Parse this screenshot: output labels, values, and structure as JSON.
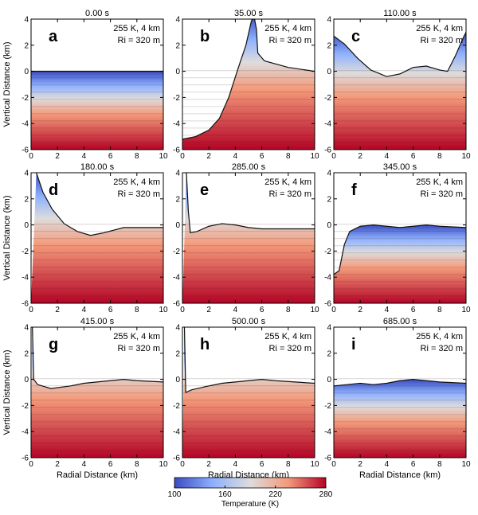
{
  "chart_data": {
    "type": "heatmap",
    "xlabel": "Radial Distance (km)",
    "ylabel": "Vertical Distance (km)",
    "xlim": [
      0,
      10
    ],
    "ylim": [
      -6,
      4
    ],
    "xticks": [
      0,
      2,
      4,
      6,
      8,
      10
    ],
    "yticks": [
      -6,
      -4,
      -2,
      0,
      2,
      4
    ],
    "colorbar": {
      "label": "Temperature (K)",
      "range": [
        100,
        280
      ],
      "ticks": [
        100,
        160,
        220,
        280
      ],
      "colors": [
        "#3a4cc0",
        "#8db0fe",
        "#dddcdc",
        "#f49a7b",
        "#b40426"
      ]
    },
    "panels": [
      {
        "letter": "a",
        "time": "0.00 s",
        "info1": "255 K, 4 km",
        "info2": "Ri = 320 m",
        "surface": [
          [
            0,
            0
          ],
          [
            10,
            0
          ]
        ]
      },
      {
        "letter": "b",
        "time": "35.00 s",
        "info1": "255 K, 4 km",
        "info2": "Ri = 320 m",
        "surface": [
          [
            0,
            -5.2
          ],
          [
            1,
            -5
          ],
          [
            2,
            -4.5
          ],
          [
            2.8,
            -3.6
          ],
          [
            3.5,
            -2
          ],
          [
            4.2,
            0.2
          ],
          [
            4.8,
            2
          ],
          [
            5.2,
            3.8
          ],
          [
            5.4,
            4.3
          ],
          [
            5.6,
            3.2
          ],
          [
            5.7,
            1.4
          ],
          [
            6.2,
            0.8
          ],
          [
            8,
            0.3
          ],
          [
            10,
            0
          ]
        ]
      },
      {
        "letter": "c",
        "time": "110.00 s",
        "info1": "255 K, 4 km",
        "info2": "Ri = 320 m",
        "surface": [
          [
            0,
            2.7
          ],
          [
            0.8,
            2.1
          ],
          [
            1.8,
            1
          ],
          [
            2.8,
            0.1
          ],
          [
            4,
            -0.4
          ],
          [
            5,
            -0.2
          ],
          [
            6,
            0.3
          ],
          [
            7,
            0.4
          ],
          [
            8,
            0.1
          ],
          [
            8.6,
            0
          ],
          [
            9.2,
            1.2
          ],
          [
            9.8,
            2.6
          ],
          [
            10,
            3
          ]
        ]
      },
      {
        "letter": "d",
        "time": "180.00 s",
        "info1": "255 K, 4 km",
        "info2": "Ri = 320 m",
        "surface": [
          [
            0.4,
            4
          ],
          [
            0.9,
            2.5
          ],
          [
            1.6,
            1.2
          ],
          [
            2.5,
            0.1
          ],
          [
            3.5,
            -0.5
          ],
          [
            4.5,
            -0.8
          ],
          [
            5.5,
            -0.6
          ],
          [
            7,
            -0.2
          ],
          [
            10,
            -0.2
          ]
        ]
      },
      {
        "letter": "e",
        "time": "285.00 s",
        "info1": "255 K, 4 km",
        "info2": "Ri = 320 m",
        "surface": [
          [
            0.3,
            4
          ],
          [
            0.45,
            1
          ],
          [
            0.6,
            -0.6
          ],
          [
            1.1,
            -0.5
          ],
          [
            2,
            -0.1
          ],
          [
            3,
            0.1
          ],
          [
            4,
            0
          ],
          [
            5,
            -0.2
          ],
          [
            6,
            -0.3
          ],
          [
            10,
            -0.3
          ]
        ]
      },
      {
        "letter": "f",
        "time": "345.00 s",
        "info1": "255 K, 4 km",
        "info2": "Ri = 320 m",
        "surface": [
          [
            0,
            -3.8
          ],
          [
            0.4,
            -3.5
          ],
          [
            0.8,
            -1.5
          ],
          [
            1.2,
            -0.5
          ],
          [
            2,
            -0.1
          ],
          [
            3,
            0
          ],
          [
            4,
            -0.1
          ],
          [
            5,
            -0.2
          ],
          [
            6,
            -0.1
          ],
          [
            7,
            0
          ],
          [
            8,
            -0.1
          ],
          [
            10,
            -0.2
          ]
        ]
      },
      {
        "letter": "g",
        "time": "415.00 s",
        "info1": "255 K, 4 km",
        "info2": "Ri = 320 m",
        "surface": [
          [
            0.1,
            4
          ],
          [
            0.2,
            0
          ],
          [
            0.5,
            -0.4
          ],
          [
            1.5,
            -0.7
          ],
          [
            3,
            -0.5
          ],
          [
            4,
            -0.3
          ],
          [
            5,
            -0.2
          ],
          [
            6,
            -0.1
          ],
          [
            7,
            0
          ],
          [
            8,
            -0.1
          ],
          [
            10,
            -0.2
          ]
        ]
      },
      {
        "letter": "h",
        "time": "500.00 s",
        "info1": "255 K, 4 km",
        "info2": "Ri = 320 m",
        "surface": [
          [
            0.15,
            4
          ],
          [
            0.25,
            -1
          ],
          [
            0.7,
            -0.8
          ],
          [
            2,
            -0.5
          ],
          [
            3,
            -0.3
          ],
          [
            4,
            -0.2
          ],
          [
            5,
            -0.1
          ],
          [
            6,
            0
          ],
          [
            7,
            -0.1
          ],
          [
            10,
            -0.3
          ]
        ]
      },
      {
        "letter": "i",
        "time": "685.00 s",
        "info1": "255 K, 4 km",
        "info2": "Ri = 320 m",
        "surface": [
          [
            0,
            -0.5
          ],
          [
            1,
            -0.4
          ],
          [
            2,
            -0.3
          ],
          [
            3,
            -0.4
          ],
          [
            4,
            -0.3
          ],
          [
            5,
            -0.1
          ],
          [
            6,
            0
          ],
          [
            7,
            -0.1
          ],
          [
            8,
            -0.2
          ],
          [
            10,
            -0.3
          ]
        ]
      }
    ]
  }
}
